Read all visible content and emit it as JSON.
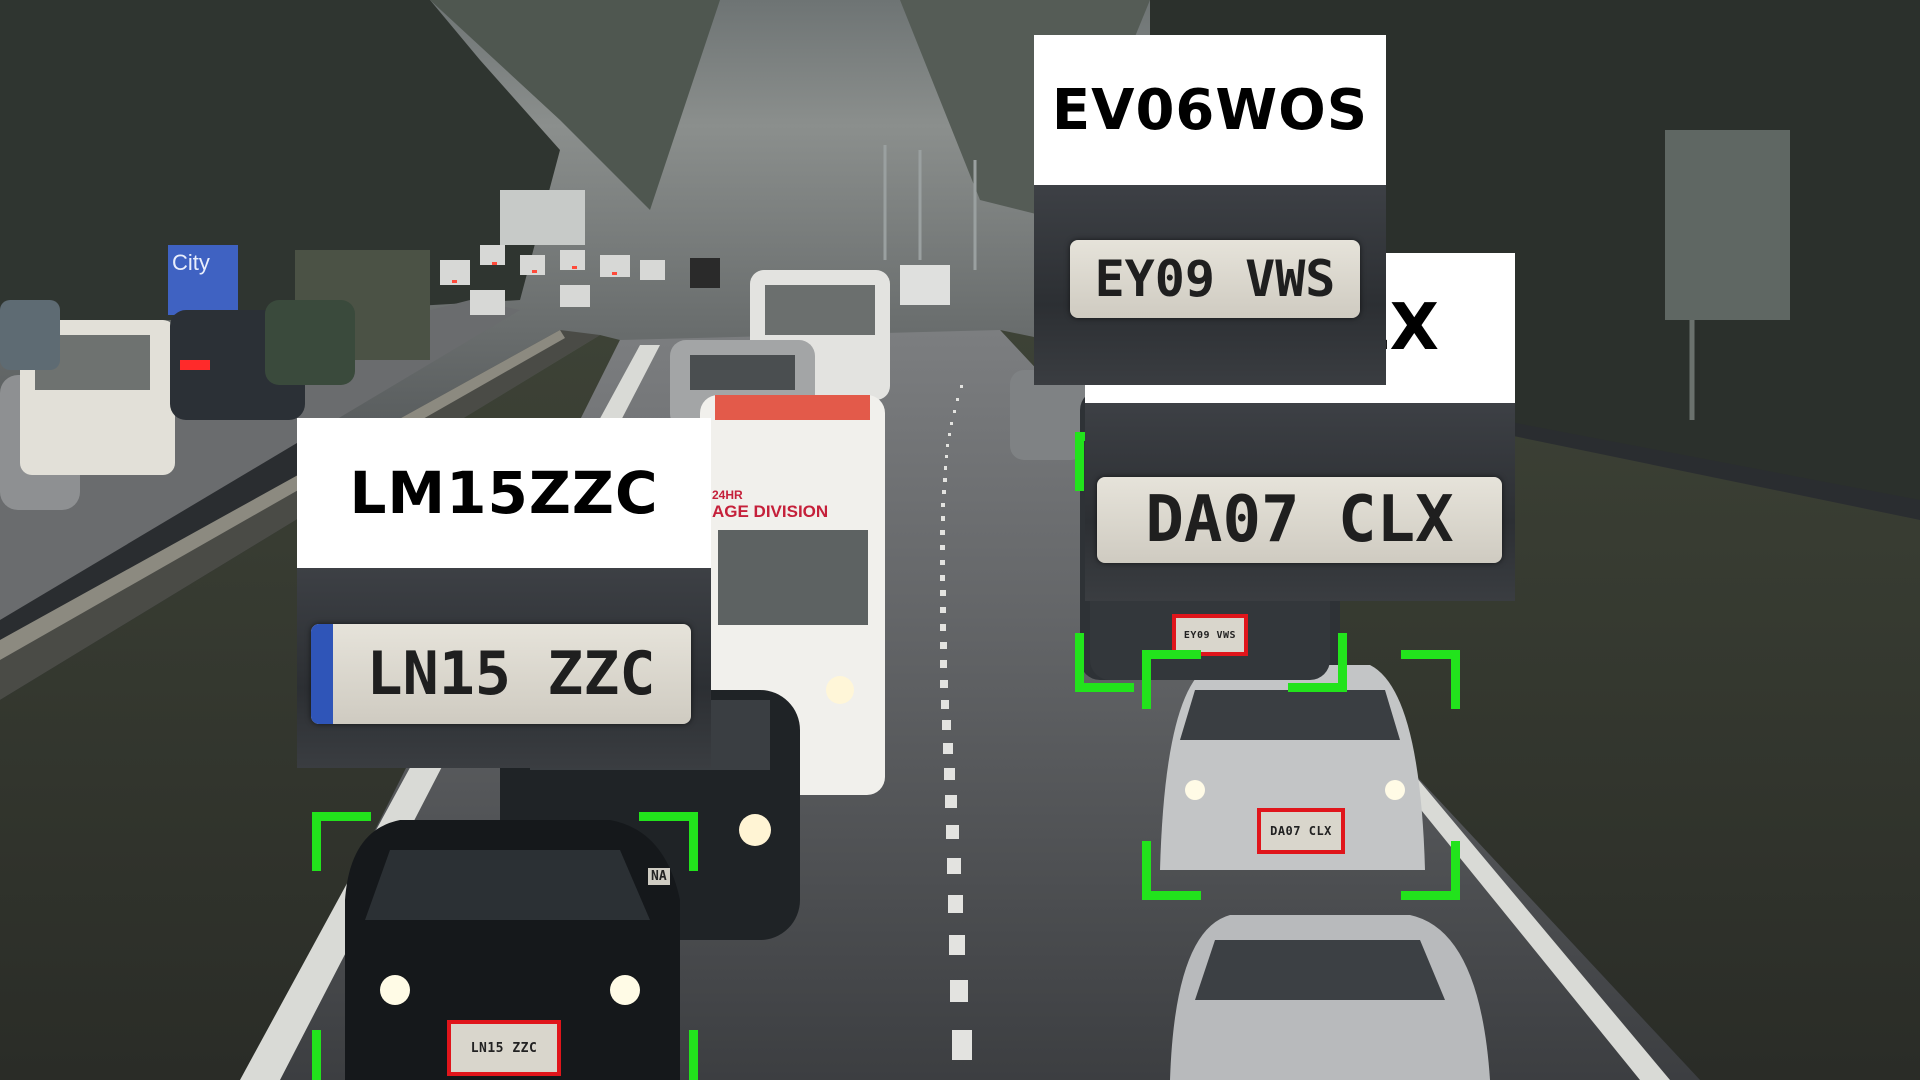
{
  "scene": {
    "road_sign_text": "City",
    "van_text_small": "24HR",
    "van_text": "AGE DIVISION",
    "partial_plate_text": "NA"
  },
  "detections": [
    {
      "id": "car-1",
      "recognized_text": "LM15ZZC",
      "plate_text": "LN15 ZZC",
      "plate_crop_text": "LN15 ZZC",
      "has_eu_strip": true
    },
    {
      "id": "car-2",
      "recognized_text": "DA07CLX",
      "recognized_text_visible": "LX",
      "plate_text": "DA07 CLX",
      "plate_crop_text": "DA07 CLX",
      "has_eu_strip": false
    },
    {
      "id": "car-3",
      "recognized_text": "EV06WOS",
      "plate_text": "EY09 VWS",
      "plate_crop_text": "EY09 VWS",
      "has_eu_strip": false
    }
  ],
  "colors": {
    "detection_box": "#22e31c",
    "plate_box": "#e0151b",
    "label_background": "#ffffff",
    "label_text": "#000000"
  }
}
